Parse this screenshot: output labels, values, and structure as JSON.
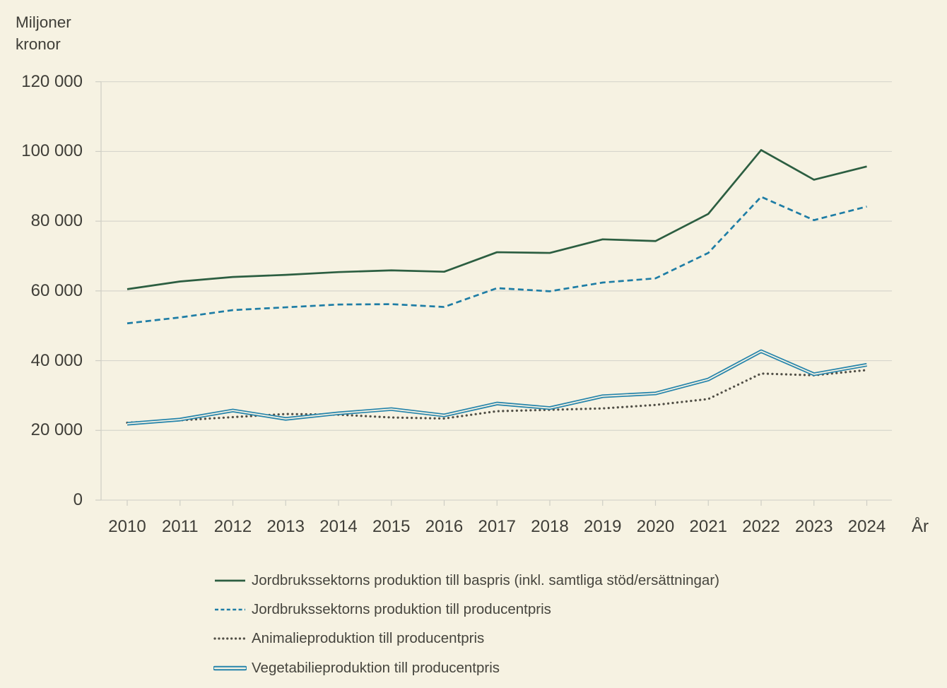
{
  "y_axis_title": {
    "line1": "Miljoner",
    "line2": "kronor"
  },
  "x_axis_label": "År",
  "colors": {
    "background": "#f6f2e2",
    "gridline": "#d7d6cc",
    "axis": "#cfceC5",
    "text": "#3f3e38"
  },
  "chart_data": {
    "type": "line",
    "x": [
      2010,
      2011,
      2012,
      2013,
      2014,
      2015,
      2016,
      2017,
      2018,
      2019,
      2020,
      2021,
      2022,
      2023,
      2024
    ],
    "ylim": [
      0,
      120000
    ],
    "ytick_step": 20000,
    "ytick_labels": [
      "0",
      "20 000",
      "40 000",
      "60 000",
      "80 000",
      "100 000",
      "120 000"
    ],
    "grid": true,
    "legend_position": "bottom-left",
    "ylabel": "Miljoner kronor",
    "xlabel": "År",
    "series": [
      {
        "name": "Jordbrukssektorns produktion till baspris (inkl. samtliga stöd/ersättningar)",
        "style": "solid",
        "color": "#2c5e41",
        "values": [
          60500,
          62700,
          64000,
          64600,
          65400,
          65900,
          65500,
          71100,
          70900,
          74800,
          74300,
          82100,
          100400,
          91900,
          95700
        ]
      },
      {
        "name": "Jordbrukssektorns produktion till producentpris",
        "style": "dashed",
        "color": "#1e7da5",
        "values": [
          50700,
          52400,
          54500,
          55300,
          56100,
          56200,
          55400,
          60800,
          59900,
          62400,
          63600,
          70900,
          87000,
          80300,
          84200
        ]
      },
      {
        "name": "Animalieproduktion till producentpris",
        "style": "dotted",
        "color": "#514f46",
        "values": [
          22200,
          22900,
          23800,
          24700,
          24500,
          23700,
          23400,
          25500,
          25900,
          26300,
          27300,
          29000,
          36300,
          35800,
          37300
        ]
      },
      {
        "name": "Vegetabilieproduktion till producentpris",
        "style": "double",
        "color": "#2584ab",
        "values": [
          21900,
          23100,
          25700,
          23300,
          24900,
          26100,
          24300,
          27700,
          26400,
          29800,
          30600,
          34600,
          42700,
          36100,
          38800
        ]
      }
    ]
  }
}
